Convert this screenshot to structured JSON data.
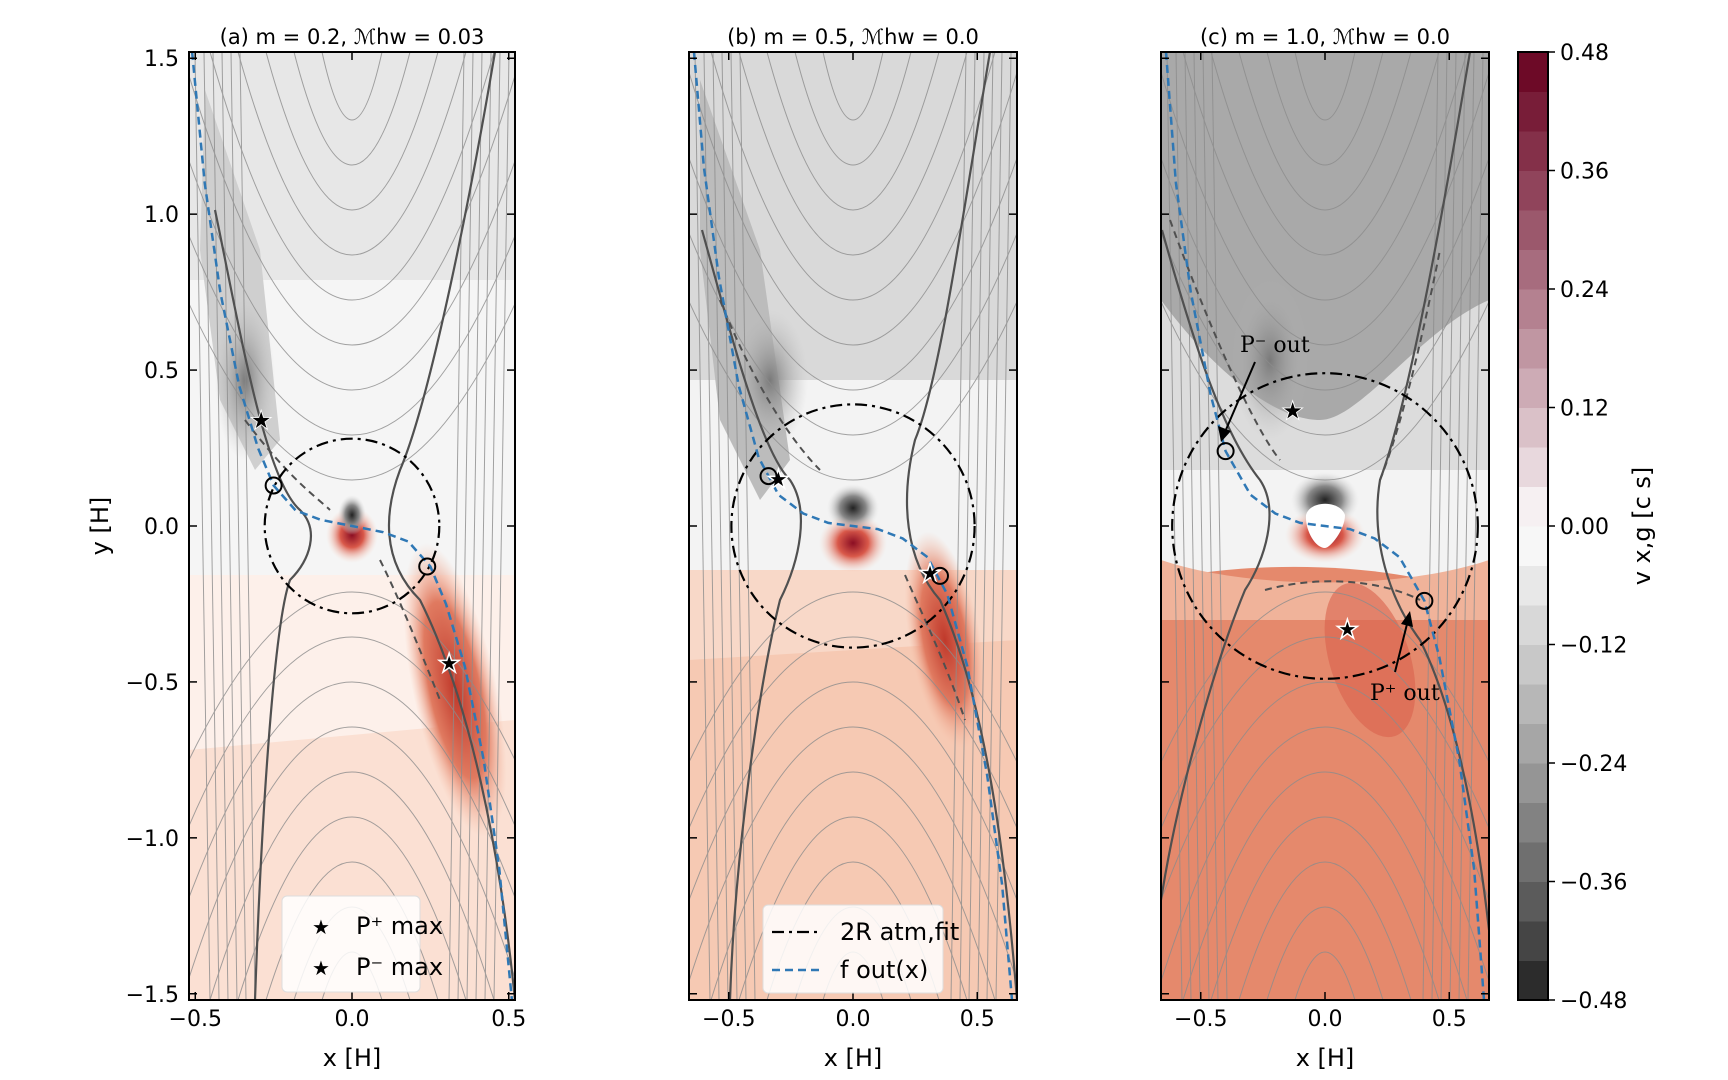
{
  "chart_data": [
    {
      "type": "contour",
      "title": "(a) m = 0.2,  ℳhw = 0.03",
      "xlabel": "x [H]",
      "ylabel": "y [H]",
      "xlim": [
        -0.52,
        0.52
      ],
      "ylim": [
        -1.52,
        1.52
      ],
      "xticks": [
        -0.5,
        0.0,
        0.5
      ],
      "xtick_labels": [
        "−0.5",
        "0.0",
        "0.5"
      ],
      "yticks": [
        -1.5,
        -1.0,
        -0.5,
        0.0,
        0.5,
        1.0,
        1.5
      ],
      "ytick_labels": [
        "−1.5",
        "−1.0",
        "−0.5",
        "0.0",
        "0.5",
        "1.0",
        "1.5"
      ],
      "circle_radius": 0.28,
      "f_out": {
        "x": [
          -0.51,
          -0.47,
          -0.42,
          -0.36,
          -0.3,
          -0.25,
          -0.18,
          -0.1,
          0.0,
          0.1,
          0.18,
          0.25,
          0.3,
          0.36,
          0.42,
          0.47,
          0.51
        ],
        "y": [
          1.52,
          1.1,
          0.75,
          0.45,
          0.25,
          0.13,
          0.05,
          0.02,
          0.0,
          -0.02,
          -0.05,
          -0.13,
          -0.25,
          -0.45,
          -0.75,
          -1.1,
          -1.52
        ]
      },
      "markers": [
        {
          "label": "P_max⁺",
          "x": 0.31,
          "y": -0.44,
          "style": "open-star"
        },
        {
          "label": "P_max⁻",
          "x": -0.29,
          "y": 0.34,
          "style": "black-star"
        },
        {
          "label": "P_out⁻",
          "x": -0.25,
          "y": 0.13,
          "style": "circle"
        },
        {
          "label": "P_out⁺",
          "x": 0.24,
          "y": -0.13,
          "style": "circle"
        }
      ],
      "legend": {
        "location": "lower-center",
        "entries": [
          "P⁺ max",
          "P⁻ max"
        ]
      }
    },
    {
      "type": "contour",
      "title": "(b) m = 0.5,  ℳhw = 0.0",
      "xlabel": "x [H]",
      "xlim": [
        -0.66,
        0.66
      ],
      "ylim": [
        -1.52,
        1.52
      ],
      "xticks": [
        -0.5,
        0.0,
        0.5
      ],
      "xtick_labels": [
        "−0.5",
        "0.0",
        "0.5"
      ],
      "circle_radius": 0.39,
      "f_out": {
        "x": [
          -0.64,
          -0.6,
          -0.54,
          -0.46,
          -0.38,
          -0.3,
          -0.2,
          -0.1,
          0.0,
          0.1,
          0.2,
          0.3,
          0.38,
          0.46,
          0.54,
          0.6,
          0.64
        ],
        "y": [
          1.52,
          1.15,
          0.8,
          0.45,
          0.22,
          0.1,
          0.04,
          0.01,
          0.0,
          -0.01,
          -0.04,
          -0.1,
          -0.22,
          -0.45,
          -0.8,
          -1.15,
          -1.52
        ]
      },
      "markers": [
        {
          "label": "P_max⁺",
          "x": 0.31,
          "y": -0.15,
          "style": "open-star"
        },
        {
          "label": "P_max⁻",
          "x": -0.3,
          "y": 0.15,
          "style": "open-star"
        },
        {
          "label": "P_out⁻",
          "x": -0.34,
          "y": 0.16,
          "style": "circle"
        },
        {
          "label": "P_out⁺",
          "x": 0.35,
          "y": -0.16,
          "style": "circle"
        }
      ],
      "legend": {
        "location": "lower-center",
        "entries": [
          "2R atm,fit",
          "f out(x)"
        ]
      }
    },
    {
      "type": "contour",
      "title": "(c) m = 1.0,  ℳhw = 0.0",
      "xlabel": "x [H]",
      "xlim": [
        -0.66,
        0.66
      ],
      "ylim": [
        -1.52,
        1.52
      ],
      "xticks": [
        -0.5,
        0.0,
        0.5
      ],
      "xtick_labels": [
        "−0.5",
        "0.0",
        "0.5"
      ],
      "circle_radius": 0.49,
      "f_out": {
        "x": [
          -0.64,
          -0.6,
          -0.54,
          -0.46,
          -0.4,
          -0.3,
          -0.2,
          -0.1,
          0.0,
          0.1,
          0.2,
          0.3,
          0.4,
          0.46,
          0.54,
          0.6,
          0.64
        ],
        "y": [
          1.52,
          1.1,
          0.75,
          0.42,
          0.24,
          0.1,
          0.04,
          0.01,
          0.0,
          -0.01,
          -0.04,
          -0.1,
          -0.24,
          -0.42,
          -0.75,
          -1.1,
          -1.52
        ]
      },
      "markers": [
        {
          "label": "P_max⁺",
          "x": 0.09,
          "y": -0.33,
          "style": "open-star"
        },
        {
          "label": "P_max⁻",
          "x": -0.13,
          "y": 0.37,
          "style": "black-star"
        },
        {
          "label": "P_out⁻",
          "x": -0.4,
          "y": 0.24,
          "style": "circle"
        },
        {
          "label": "P_out⁺",
          "x": 0.4,
          "y": -0.24,
          "style": "circle"
        }
      ],
      "annotations": [
        {
          "text": "P⁻ out",
          "points_to": "P_out⁻"
        },
        {
          "text": "P⁺ out",
          "points_to": "P_out⁺"
        }
      ]
    }
  ],
  "colorbar": {
    "label": "v x,g [c s]",
    "range": [
      -0.48,
      0.48
    ],
    "levels": 24,
    "ticks": [
      0.48,
      0.36,
      0.24,
      0.12,
      0.0,
      -0.12,
      -0.24,
      -0.36,
      -0.48
    ],
    "tick_labels": [
      "0.48",
      "0.36",
      "0.24",
      "0.12",
      "0.00",
      "−0.12",
      "−0.24",
      "−0.36",
      "−0.48"
    ]
  },
  "colors": {
    "positive": "#67001f",
    "negative": "#1a1a1a",
    "zero": "#ffffff",
    "fout_line": "#2f78b5",
    "star_red": "#d62728",
    "streamline": "#8c8c8c",
    "separatrix": "#555555"
  }
}
